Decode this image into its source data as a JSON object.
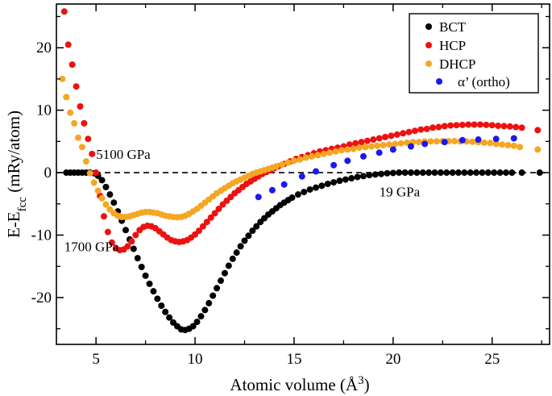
{
  "chart_data": {
    "type": "scatter",
    "title": "",
    "xlabel": {
      "main": "Atomic volume (",
      "unit": "Å",
      "sup": "3",
      "close": ")"
    },
    "ylabel": {
      "main": "E-E",
      "sub": "fcc",
      "rest": " (mRy/atom)"
    },
    "xlim": [
      3.0,
      27.9
    ],
    "ylim": [
      -27.5,
      27.0
    ],
    "xticks": [
      5,
      10,
      15,
      20,
      25
    ],
    "yticks": [
      -20,
      -10,
      0,
      10,
      20
    ],
    "reference_line": {
      "y": 0,
      "style": "dashed"
    },
    "legend_position": "top-right",
    "annotations": [
      {
        "text": "5100 GPa",
        "x": 5.0,
        "y": 2.2
      },
      {
        "text": "1700 GPa",
        "x": 3.4,
        "y": -12.6
      },
      {
        "text": "19 GPa",
        "x": 19.3,
        "y": -3.8
      }
    ],
    "series": [
      {
        "name": "BCT",
        "color": "#000000",
        "points": [
          [
            3.5,
            0
          ],
          [
            3.7,
            0
          ],
          [
            3.9,
            0
          ],
          [
            4.1,
            0
          ],
          [
            4.3,
            0
          ],
          [
            4.5,
            0
          ],
          [
            4.7,
            0
          ],
          [
            4.9,
            -0.1
          ],
          [
            5.1,
            -0.5
          ],
          [
            5.3,
            -1.2
          ],
          [
            5.5,
            -2.3
          ],
          [
            5.7,
            -3.5
          ],
          [
            5.9,
            -4.8
          ],
          [
            6.1,
            -6.2
          ],
          [
            6.3,
            -7.7
          ],
          [
            6.5,
            -9.2
          ],
          [
            6.7,
            -10.7
          ],
          [
            6.9,
            -12.2
          ],
          [
            7.1,
            -13.7
          ],
          [
            7.3,
            -15.1
          ],
          [
            7.5,
            -16.5
          ],
          [
            7.7,
            -17.8
          ],
          [
            7.9,
            -19.0
          ],
          [
            8.1,
            -20.2
          ],
          [
            8.3,
            -21.3
          ],
          [
            8.5,
            -22.3
          ],
          [
            8.7,
            -23.2
          ],
          [
            8.9,
            -24.0
          ],
          [
            9.1,
            -24.6
          ],
          [
            9.3,
            -25.1
          ],
          [
            9.5,
            -25.2
          ],
          [
            9.7,
            -25.0
          ],
          [
            9.9,
            -24.6
          ],
          [
            10.1,
            -23.9
          ],
          [
            10.3,
            -23.0
          ],
          [
            10.5,
            -22.0
          ],
          [
            10.7,
            -20.9
          ],
          [
            10.9,
            -19.7
          ],
          [
            11.1,
            -18.5
          ],
          [
            11.3,
            -17.3
          ],
          [
            11.5,
            -16.1
          ],
          [
            11.7,
            -14.9
          ],
          [
            11.9,
            -13.8
          ],
          [
            12.1,
            -12.8
          ],
          [
            12.3,
            -11.8
          ],
          [
            12.5,
            -10.9
          ],
          [
            12.7,
            -10.1
          ],
          [
            12.9,
            -9.3
          ],
          [
            13.1,
            -8.6
          ],
          [
            13.3,
            -7.9
          ],
          [
            13.5,
            -7.3
          ],
          [
            13.7,
            -6.7
          ],
          [
            13.9,
            -6.2
          ],
          [
            14.1,
            -5.7
          ],
          [
            14.3,
            -5.2
          ],
          [
            14.5,
            -4.8
          ],
          [
            14.7,
            -4.4
          ],
          [
            14.9,
            -4.0
          ],
          [
            15.2,
            -3.5
          ],
          [
            15.5,
            -3.1
          ],
          [
            15.8,
            -2.7
          ],
          [
            16.1,
            -2.4
          ],
          [
            16.4,
            -2.1
          ],
          [
            16.7,
            -1.8
          ],
          [
            17.0,
            -1.55
          ],
          [
            17.3,
            -1.3
          ],
          [
            17.6,
            -1.1
          ],
          [
            17.9,
            -0.9
          ],
          [
            18.2,
            -0.7
          ],
          [
            18.5,
            -0.55
          ],
          [
            18.8,
            -0.4
          ],
          [
            19.1,
            -0.3
          ],
          [
            19.4,
            -0.2
          ],
          [
            19.7,
            -0.1
          ],
          [
            20.0,
            -0.05
          ],
          [
            20.3,
            0
          ],
          [
            20.6,
            0
          ],
          [
            20.9,
            0
          ],
          [
            21.2,
            0
          ],
          [
            21.5,
            0
          ],
          [
            21.8,
            0
          ],
          [
            22.1,
            0
          ],
          [
            22.4,
            0
          ],
          [
            22.7,
            0
          ],
          [
            23.0,
            0
          ],
          [
            23.3,
            0
          ],
          [
            23.6,
            0
          ],
          [
            23.9,
            0
          ],
          [
            24.2,
            0
          ],
          [
            24.5,
            0
          ],
          [
            24.8,
            0
          ],
          [
            25.1,
            0
          ],
          [
            25.4,
            0
          ],
          [
            25.7,
            0
          ],
          [
            26.0,
            0
          ],
          [
            26.5,
            0
          ],
          [
            27.4,
            0
          ]
        ]
      },
      {
        "name": "HCP",
        "color": "#ee1111",
        "points": [
          [
            3.4,
            25.8
          ],
          [
            3.6,
            20.5
          ],
          [
            3.8,
            17.3
          ],
          [
            4.0,
            13.8
          ],
          [
            4.2,
            10.6
          ],
          [
            4.4,
            7.9
          ],
          [
            4.6,
            5.4
          ],
          [
            4.8,
            3.0
          ],
          [
            5.0,
            0.0
          ],
          [
            5.2,
            -3.7
          ],
          [
            5.4,
            -7.0
          ],
          [
            5.6,
            -9.5
          ],
          [
            5.8,
            -11.2
          ],
          [
            6.0,
            -12.1
          ],
          [
            6.2,
            -12.4
          ],
          [
            6.4,
            -12.3
          ],
          [
            6.6,
            -11.8
          ],
          [
            6.8,
            -11.0
          ],
          [
            7.0,
            -10.0
          ],
          [
            7.2,
            -9.2
          ],
          [
            7.4,
            -8.7
          ],
          [
            7.6,
            -8.5
          ],
          [
            7.8,
            -8.6
          ],
          [
            8.0,
            -8.9
          ],
          [
            8.2,
            -9.4
          ],
          [
            8.4,
            -9.9
          ],
          [
            8.6,
            -10.4
          ],
          [
            8.8,
            -10.8
          ],
          [
            9.0,
            -11.0
          ],
          [
            9.2,
            -11.1
          ],
          [
            9.4,
            -11.0
          ],
          [
            9.6,
            -10.8
          ],
          [
            9.8,
            -10.4
          ],
          [
            10.0,
            -9.9
          ],
          [
            10.2,
            -9.3
          ],
          [
            10.4,
            -8.6
          ],
          [
            10.6,
            -7.9
          ],
          [
            10.8,
            -7.2
          ],
          [
            11.0,
            -6.5
          ],
          [
            11.2,
            -5.8
          ],
          [
            11.4,
            -5.1
          ],
          [
            11.6,
            -4.5
          ],
          [
            11.8,
            -3.9
          ],
          [
            12.0,
            -3.3
          ],
          [
            12.2,
            -2.8
          ],
          [
            12.4,
            -2.3
          ],
          [
            12.6,
            -1.8
          ],
          [
            12.8,
            -1.4
          ],
          [
            13.0,
            -1.0
          ],
          [
            13.2,
            -0.6
          ],
          [
            13.4,
            -0.2
          ],
          [
            13.6,
            0.1
          ],
          [
            13.8,
            0.4
          ],
          [
            14.0,
            0.7
          ],
          [
            14.2,
            1.0
          ],
          [
            14.5,
            1.4
          ],
          [
            14.8,
            1.8
          ],
          [
            15.1,
            2.2
          ],
          [
            15.4,
            2.5
          ],
          [
            15.7,
            2.8
          ],
          [
            16.0,
            3.1
          ],
          [
            16.3,
            3.4
          ],
          [
            16.6,
            3.6
          ],
          [
            16.9,
            3.8
          ],
          [
            17.2,
            4.0
          ],
          [
            17.5,
            4.2
          ],
          [
            17.8,
            4.5
          ],
          [
            18.1,
            4.7
          ],
          [
            18.4,
            4.9
          ],
          [
            18.7,
            5.1
          ],
          [
            19.0,
            5.3
          ],
          [
            19.3,
            5.5
          ],
          [
            19.6,
            5.7
          ],
          [
            19.9,
            5.9
          ],
          [
            20.2,
            6.1
          ],
          [
            20.5,
            6.3
          ],
          [
            20.8,
            6.5
          ],
          [
            21.1,
            6.7
          ],
          [
            21.4,
            6.9
          ],
          [
            21.7,
            7.0
          ],
          [
            22.0,
            7.2
          ],
          [
            22.3,
            7.3
          ],
          [
            22.6,
            7.45
          ],
          [
            22.9,
            7.55
          ],
          [
            23.2,
            7.6
          ],
          [
            23.5,
            7.65
          ],
          [
            23.8,
            7.7
          ],
          [
            24.1,
            7.7
          ],
          [
            24.4,
            7.7
          ],
          [
            24.7,
            7.65
          ],
          [
            25.0,
            7.6
          ],
          [
            25.3,
            7.5
          ],
          [
            25.6,
            7.45
          ],
          [
            25.9,
            7.4
          ],
          [
            26.2,
            7.3
          ],
          [
            26.5,
            7.2
          ],
          [
            27.3,
            6.8
          ]
        ]
      },
      {
        "name": "DHCP",
        "color": "#f5a623",
        "points": [
          [
            3.3,
            15.0
          ],
          [
            3.5,
            12.1
          ],
          [
            3.7,
            9.6
          ],
          [
            3.9,
            7.9
          ],
          [
            4.1,
            5.6
          ],
          [
            4.3,
            4.1
          ],
          [
            4.5,
            1.8
          ],
          [
            4.7,
            -0.1
          ],
          [
            4.9,
            -1.6
          ],
          [
            5.1,
            -2.9
          ],
          [
            5.3,
            -4.1
          ],
          [
            5.5,
            -5.1
          ],
          [
            5.7,
            -5.9
          ],
          [
            5.9,
            -6.5
          ],
          [
            6.1,
            -6.9
          ],
          [
            6.3,
            -7.1
          ],
          [
            6.5,
            -7.1
          ],
          [
            6.7,
            -7.0
          ],
          [
            6.9,
            -6.8
          ],
          [
            7.1,
            -6.6
          ],
          [
            7.3,
            -6.4
          ],
          [
            7.5,
            -6.3
          ],
          [
            7.7,
            -6.3
          ],
          [
            7.9,
            -6.4
          ],
          [
            8.1,
            -6.5
          ],
          [
            8.3,
            -6.7
          ],
          [
            8.5,
            -6.9
          ],
          [
            8.7,
            -7.0
          ],
          [
            8.9,
            -7.1
          ],
          [
            9.1,
            -7.15
          ],
          [
            9.3,
            -7.1
          ],
          [
            9.5,
            -6.9
          ],
          [
            9.7,
            -6.6
          ],
          [
            9.9,
            -6.2
          ],
          [
            10.1,
            -5.8
          ],
          [
            10.3,
            -5.3
          ],
          [
            10.5,
            -4.8
          ],
          [
            10.7,
            -4.3
          ],
          [
            10.9,
            -3.8
          ],
          [
            11.1,
            -3.3
          ],
          [
            11.3,
            -2.9
          ],
          [
            11.5,
            -2.5
          ],
          [
            11.7,
            -2.1
          ],
          [
            11.9,
            -1.7
          ],
          [
            12.1,
            -1.4
          ],
          [
            12.3,
            -1.1
          ],
          [
            12.5,
            -0.8
          ],
          [
            12.7,
            -0.5
          ],
          [
            12.9,
            -0.2
          ],
          [
            13.1,
            0.0
          ],
          [
            13.3,
            0.2
          ],
          [
            13.5,
            0.4
          ],
          [
            13.7,
            0.6
          ],
          [
            13.9,
            0.8
          ],
          [
            14.1,
            1.0
          ],
          [
            14.4,
            1.3
          ],
          [
            14.7,
            1.6
          ],
          [
            15.0,
            1.9
          ],
          [
            15.3,
            2.1
          ],
          [
            15.6,
            2.4
          ],
          [
            15.9,
            2.6
          ],
          [
            16.2,
            2.8
          ],
          [
            16.5,
            3.0
          ],
          [
            16.8,
            3.2
          ],
          [
            17.1,
            3.4
          ],
          [
            17.4,
            3.6
          ],
          [
            17.7,
            3.7
          ],
          [
            18.0,
            3.8
          ],
          [
            18.3,
            4.0
          ],
          [
            18.6,
            4.1
          ],
          [
            18.9,
            4.2
          ],
          [
            19.2,
            4.3
          ],
          [
            19.5,
            4.4
          ],
          [
            19.8,
            4.5
          ],
          [
            20.1,
            4.6
          ],
          [
            20.4,
            4.7
          ],
          [
            20.7,
            4.8
          ],
          [
            21.0,
            4.9
          ],
          [
            21.3,
            4.9
          ],
          [
            21.6,
            5.0
          ],
          [
            21.9,
            5.0
          ],
          [
            22.2,
            5.0
          ],
          [
            22.5,
            5.05
          ],
          [
            22.8,
            5.05
          ],
          [
            23.1,
            5.05
          ],
          [
            23.4,
            5.0
          ],
          [
            23.7,
            5.0
          ],
          [
            24.0,
            4.95
          ],
          [
            24.3,
            4.9
          ],
          [
            24.6,
            4.8
          ],
          [
            24.9,
            4.75
          ],
          [
            25.2,
            4.6
          ],
          [
            25.5,
            4.5
          ],
          [
            25.8,
            4.4
          ],
          [
            26.1,
            4.3
          ],
          [
            26.4,
            4.1
          ],
          [
            27.3,
            3.7
          ]
        ]
      },
      {
        "name": "α’ (ortho)",
        "color": "#1a1aee",
        "points": [
          [
            13.2,
            -3.9
          ],
          [
            13.9,
            -2.8
          ],
          [
            14.5,
            -1.9
          ],
          [
            15.4,
            -0.6
          ],
          [
            16.1,
            0.2
          ],
          [
            17.0,
            1.2
          ],
          [
            17.7,
            1.9
          ],
          [
            18.5,
            2.6
          ],
          [
            19.3,
            3.2
          ],
          [
            20.0,
            3.7
          ],
          [
            20.9,
            4.2
          ],
          [
            21.6,
            4.6
          ],
          [
            22.6,
            4.9
          ],
          [
            23.5,
            5.2
          ],
          [
            24.3,
            5.3
          ],
          [
            25.2,
            5.4
          ],
          [
            26.1,
            5.5
          ]
        ]
      }
    ]
  }
}
